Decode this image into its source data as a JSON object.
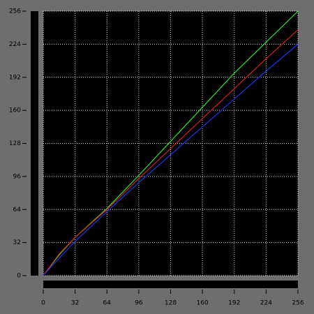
{
  "chart_data": {
    "type": "line",
    "x": [
      0,
      16,
      32,
      64,
      96,
      128,
      160,
      192,
      224,
      256
    ],
    "series": [
      {
        "name": "Green",
        "color": "#33e033",
        "values": [
          0,
          20,
          37,
          65,
          97,
          130,
          163,
          196,
          226,
          256
        ]
      },
      {
        "name": "Red",
        "color": "#d02020",
        "values": [
          0,
          21,
          37,
          64,
          94,
          123,
          152,
          181,
          210,
          238
        ]
      },
      {
        "name": "Blue",
        "color": "#2233e8",
        "values": [
          0,
          17,
          33,
          62,
          90,
          117,
          144,
          171,
          198,
          224
        ]
      }
    ],
    "xlim": [
      0,
      256
    ],
    "ylim": [
      0,
      256
    ],
    "xticks": [
      0,
      32,
      64,
      96,
      128,
      160,
      192,
      224,
      256
    ],
    "yticks": [
      0,
      32,
      64,
      96,
      128,
      160,
      192,
      224,
      256
    ],
    "grid": true
  }
}
